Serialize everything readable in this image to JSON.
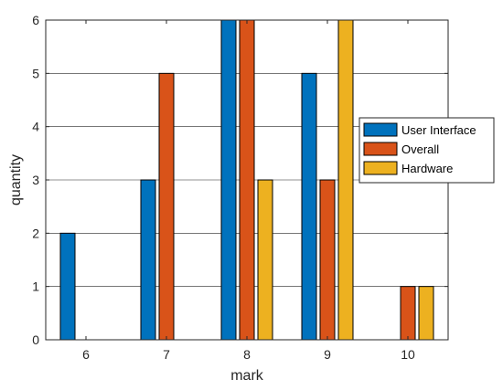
{
  "chart_data": {
    "type": "bar",
    "title": "",
    "xlabel": "mark",
    "ylabel": "quantity",
    "categories": [
      "6",
      "7",
      "8",
      "9",
      "10"
    ],
    "ylim": [
      0,
      6
    ],
    "yticks": [
      "0",
      "1",
      "2",
      "3",
      "4",
      "5",
      "6"
    ],
    "grid": "y",
    "legend_position": "right",
    "series": [
      {
        "name": "User Interface",
        "color": "#0072BD",
        "values": [
          2,
          3,
          6,
          5,
          0
        ]
      },
      {
        "name": "Overall",
        "color": "#D95319",
        "values": [
          0,
          5,
          6,
          3,
          1
        ]
      },
      {
        "name": "Hardware",
        "color": "#EDB120",
        "values": [
          0,
          0,
          3,
          6,
          1
        ]
      }
    ]
  }
}
